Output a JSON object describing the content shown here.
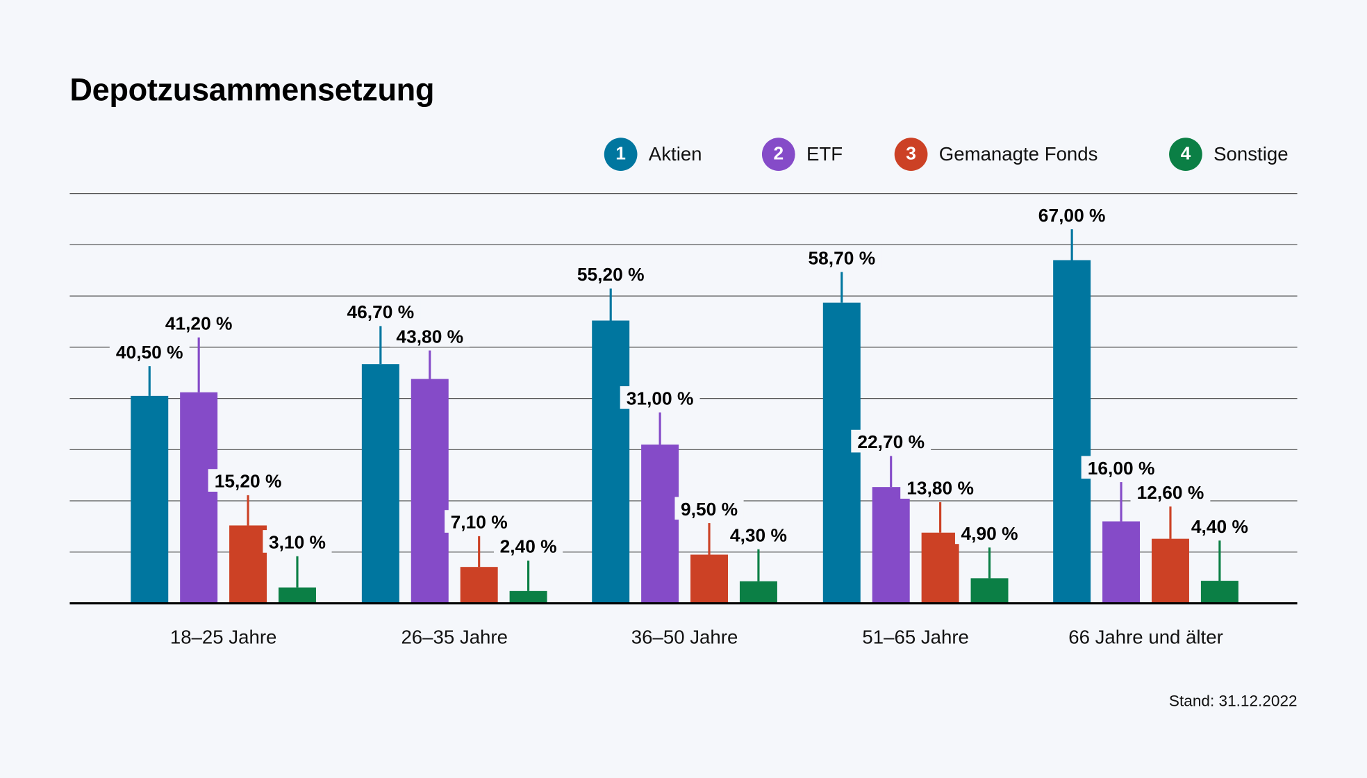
{
  "chart_data": {
    "type": "bar",
    "title": "Depotzusammensetzung",
    "categories": [
      "18–25 Jahre",
      "26–35 Jahre",
      "36–50 Jahre",
      "51–65 Jahre",
      "66 Jahre und älter"
    ],
    "series": [
      {
        "name": "Aktien",
        "number": "1",
        "color": "#00769f",
        "values": [
          40.5,
          46.7,
          55.2,
          58.7,
          67.0
        ],
        "labels": [
          "40,50 %",
          "46,70 %",
          "55,20 %",
          "58,70 %",
          "67,00 %"
        ]
      },
      {
        "name": "ETF",
        "number": "2",
        "color": "#854bc8",
        "values": [
          41.2,
          43.8,
          31.0,
          22.7,
          16.0
        ],
        "labels": [
          "41,20 %",
          "43,80 %",
          "31,00 %",
          "22,70 %",
          "16,00 %"
        ]
      },
      {
        "name": "Gemanagte Fonds",
        "number": "3",
        "color": "#cc4125",
        "values": [
          15.2,
          7.1,
          9.5,
          13.8,
          12.6
        ],
        "labels": [
          "15,20 %",
          "7,10 %",
          "9,50 %",
          "13,80 %",
          "12,60 %"
        ]
      },
      {
        "name": "Sonstige",
        "number": "4",
        "color": "#0b7f45",
        "values": [
          3.1,
          2.4,
          4.3,
          4.9,
          4.4
        ],
        "labels": [
          "3,10 %",
          "2,40 %",
          "4,30 %",
          "4,90 %",
          "4,40 %"
        ]
      }
    ],
    "ylim": [
      0,
      80
    ],
    "grid": true,
    "legend": "top-right",
    "note": "Stand: 31.12.2022"
  }
}
